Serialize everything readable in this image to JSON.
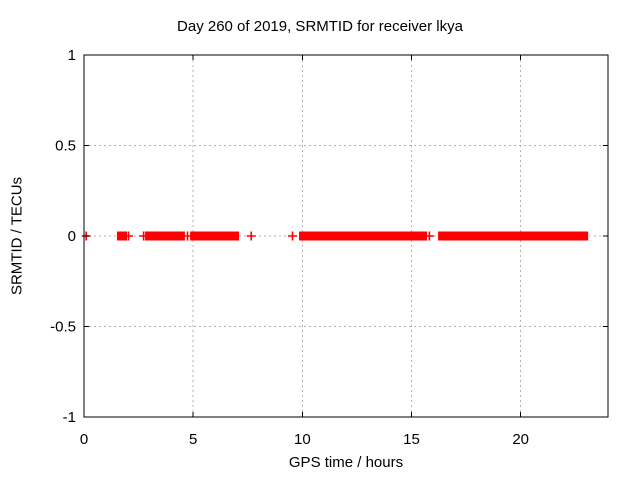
{
  "chart_data": {
    "type": "scatter",
    "title": "Day 260 of 2019, SRMTID for receiver lkya",
    "xlabel": "GPS time / hours",
    "ylabel": "SRMTID / TECUs",
    "xlim": [
      0,
      24
    ],
    "ylim": [
      -1,
      1
    ],
    "xticks": [
      {
        "v": 0,
        "label": "0"
      },
      {
        "v": 5,
        "label": "5"
      },
      {
        "v": 10,
        "label": "10"
      },
      {
        "v": 15,
        "label": "15"
      },
      {
        "v": 20,
        "label": "20"
      }
    ],
    "yticks": [
      {
        "v": -1,
        "label": "-1"
      },
      {
        "v": -0.5,
        "label": "-0.5"
      },
      {
        "v": 0,
        "label": "0"
      },
      {
        "v": 0.5,
        "label": "0.5"
      },
      {
        "v": 1,
        "label": "1"
      }
    ],
    "grid": true,
    "grid_color": "#b3b3b3",
    "border_color": "#000000",
    "marker": "plus",
    "series": [
      {
        "name": "SRMTID",
        "color": "#ff0000",
        "y_value": 0,
        "isolated_points_x": [
          0.1,
          2.04,
          2.73,
          4.74,
          7.66,
          9.55,
          15.82
        ],
        "dense_segments_x": [
          [
            1.6,
            1.88
          ],
          [
            2.89,
            4.53
          ],
          [
            4.95,
            5.59
          ],
          [
            5.77,
            7.01
          ],
          [
            9.94,
            15.3
          ],
          [
            15.39,
            15.62
          ],
          [
            16.31,
            16.77
          ],
          [
            16.9,
            23.0
          ]
        ]
      }
    ]
  }
}
